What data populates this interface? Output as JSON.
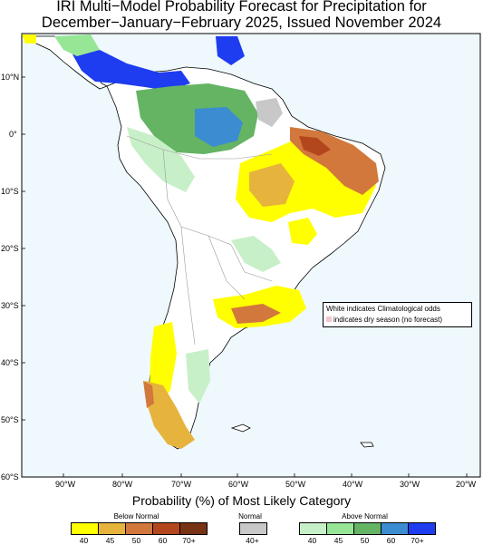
{
  "title_line1": "IRI Multi−Model Probability Forecast for Precipitation for",
  "title_line2": "December−January−February 2025, Issued November 2024",
  "lat_labels": [
    "10°N",
    "0°",
    "10°S",
    "20°S",
    "30°S",
    "40°S",
    "50°S",
    "60°S"
  ],
  "lon_labels": [
    "90°W",
    "80°W",
    "70°W",
    "60°W",
    "50°W",
    "40°W",
    "30°W",
    "20°W"
  ],
  "legend": {
    "title": "Probability (%) of Most Likely Category",
    "below_normal": {
      "label": "Below Normal",
      "ticks": [
        "40",
        "45",
        "50",
        "60",
        "70+"
      ],
      "colors": [
        "#ffff00",
        "#e6b43c",
        "#d2783c",
        "#b4461e",
        "#783214"
      ]
    },
    "normal": {
      "label": "Normal",
      "ticks": [
        "40+"
      ],
      "colors": [
        "#c8c8c8"
      ]
    },
    "above_normal": {
      "label": "Above Normal",
      "ticks": [
        "40",
        "45",
        "50",
        "60",
        "70+"
      ],
      "colors": [
        "#c8f0c8",
        "#96e696",
        "#64b464",
        "#3c8cd2",
        "#1e3cf0"
      ]
    }
  },
  "notes": {
    "line1": "White indicates Climatological odds",
    "line2": "indicates dry season (no forecast)"
  },
  "colors": {
    "ocean": "#eef8fd",
    "land": "#ffffff",
    "border": "#9a9a9a"
  }
}
